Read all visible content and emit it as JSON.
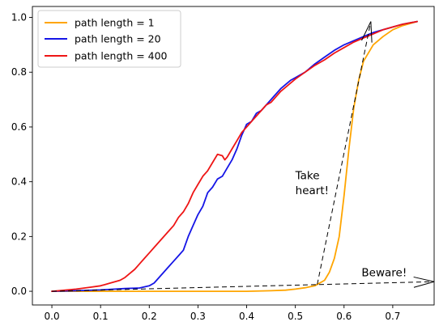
{
  "chart_data": {
    "type": "line",
    "title": "",
    "xlabel": "",
    "ylabel": "",
    "xlim": [
      -0.04,
      0.785
    ],
    "ylim": [
      -0.05,
      1.04
    ],
    "xticks": [
      "0.0",
      "0.1",
      "0.2",
      "0.3",
      "0.4",
      "0.5",
      "0.6",
      "0.7"
    ],
    "yticks": [
      "0.0",
      "0.2",
      "0.4",
      "0.6",
      "0.8",
      "1.0"
    ],
    "grid": false,
    "legend": "top-left",
    "series": [
      {
        "name": "path length = 1",
        "color": "#FFA500",
        "x": [
          0.0,
          0.1,
          0.2,
          0.3,
          0.4,
          0.45,
          0.48,
          0.5,
          0.52,
          0.54,
          0.56,
          0.57,
          0.58,
          0.59,
          0.6,
          0.61,
          0.62,
          0.63,
          0.64,
          0.65,
          0.66,
          0.68,
          0.7,
          0.72,
          0.75
        ],
        "y": [
          0.0,
          0.0,
          0.0,
          0.0,
          0.0,
          0.002,
          0.004,
          0.008,
          0.013,
          0.02,
          0.04,
          0.07,
          0.12,
          0.2,
          0.35,
          0.52,
          0.67,
          0.77,
          0.84,
          0.87,
          0.9,
          0.93,
          0.955,
          0.97,
          0.985
        ]
      },
      {
        "name": "path length = 20",
        "color": "#1515E6",
        "x": [
          0.0,
          0.05,
          0.1,
          0.15,
          0.18,
          0.2,
          0.21,
          0.22,
          0.23,
          0.24,
          0.25,
          0.26,
          0.27,
          0.28,
          0.29,
          0.3,
          0.31,
          0.32,
          0.33,
          0.34,
          0.35,
          0.36,
          0.37,
          0.38,
          0.39,
          0.4,
          0.41,
          0.42,
          0.43,
          0.44,
          0.45,
          0.47,
          0.49,
          0.5,
          0.52,
          0.54,
          0.56,
          0.58,
          0.6,
          0.62,
          0.64,
          0.66,
          0.68,
          0.7,
          0.72,
          0.75
        ],
        "y": [
          0.0,
          0.002,
          0.005,
          0.01,
          0.012,
          0.02,
          0.03,
          0.05,
          0.07,
          0.09,
          0.11,
          0.13,
          0.15,
          0.2,
          0.24,
          0.28,
          0.31,
          0.36,
          0.38,
          0.41,
          0.42,
          0.45,
          0.48,
          0.52,
          0.57,
          0.61,
          0.62,
          0.65,
          0.66,
          0.68,
          0.7,
          0.74,
          0.77,
          0.78,
          0.8,
          0.83,
          0.855,
          0.88,
          0.9,
          0.915,
          0.93,
          0.945,
          0.955,
          0.965,
          0.975,
          0.985
        ]
      },
      {
        "name": "path length = 400",
        "color": "#EE1515",
        "x": [
          0.0,
          0.05,
          0.08,
          0.1,
          0.12,
          0.14,
          0.15,
          0.16,
          0.17,
          0.18,
          0.19,
          0.2,
          0.21,
          0.22,
          0.23,
          0.24,
          0.25,
          0.26,
          0.27,
          0.28,
          0.29,
          0.3,
          0.31,
          0.32,
          0.33,
          0.34,
          0.35,
          0.355,
          0.36,
          0.37,
          0.38,
          0.39,
          0.4,
          0.41,
          0.42,
          0.43,
          0.44,
          0.45,
          0.47,
          0.49,
          0.5,
          0.52,
          0.54,
          0.56,
          0.58,
          0.6,
          0.62,
          0.64,
          0.66,
          0.68,
          0.7,
          0.72,
          0.75
        ],
        "y": [
          0.0,
          0.008,
          0.015,
          0.02,
          0.03,
          0.04,
          0.05,
          0.065,
          0.08,
          0.1,
          0.12,
          0.14,
          0.16,
          0.18,
          0.2,
          0.22,
          0.24,
          0.27,
          0.29,
          0.32,
          0.36,
          0.39,
          0.42,
          0.44,
          0.47,
          0.5,
          0.495,
          0.48,
          0.49,
          0.52,
          0.55,
          0.58,
          0.6,
          0.62,
          0.64,
          0.66,
          0.68,
          0.69,
          0.73,
          0.76,
          0.775,
          0.8,
          0.825,
          0.845,
          0.87,
          0.89,
          0.91,
          0.925,
          0.94,
          0.955,
          0.965,
          0.975,
          0.985
        ]
      }
    ],
    "annotations": [
      {
        "text": "Take",
        "x": 0.5,
        "y": 0.41
      },
      {
        "text": "heart!",
        "x": 0.5,
        "y": 0.355
      },
      {
        "text": "Beware!",
        "x": 0.636,
        "y": 0.055
      }
    ],
    "arrows": [
      {
        "from": [
          0.545,
          0.025
        ],
        "to": [
          0.655,
          0.985
        ]
      },
      {
        "from": [
          0.0,
          0.0
        ],
        "to": [
          0.785,
          0.035
        ]
      }
    ]
  }
}
